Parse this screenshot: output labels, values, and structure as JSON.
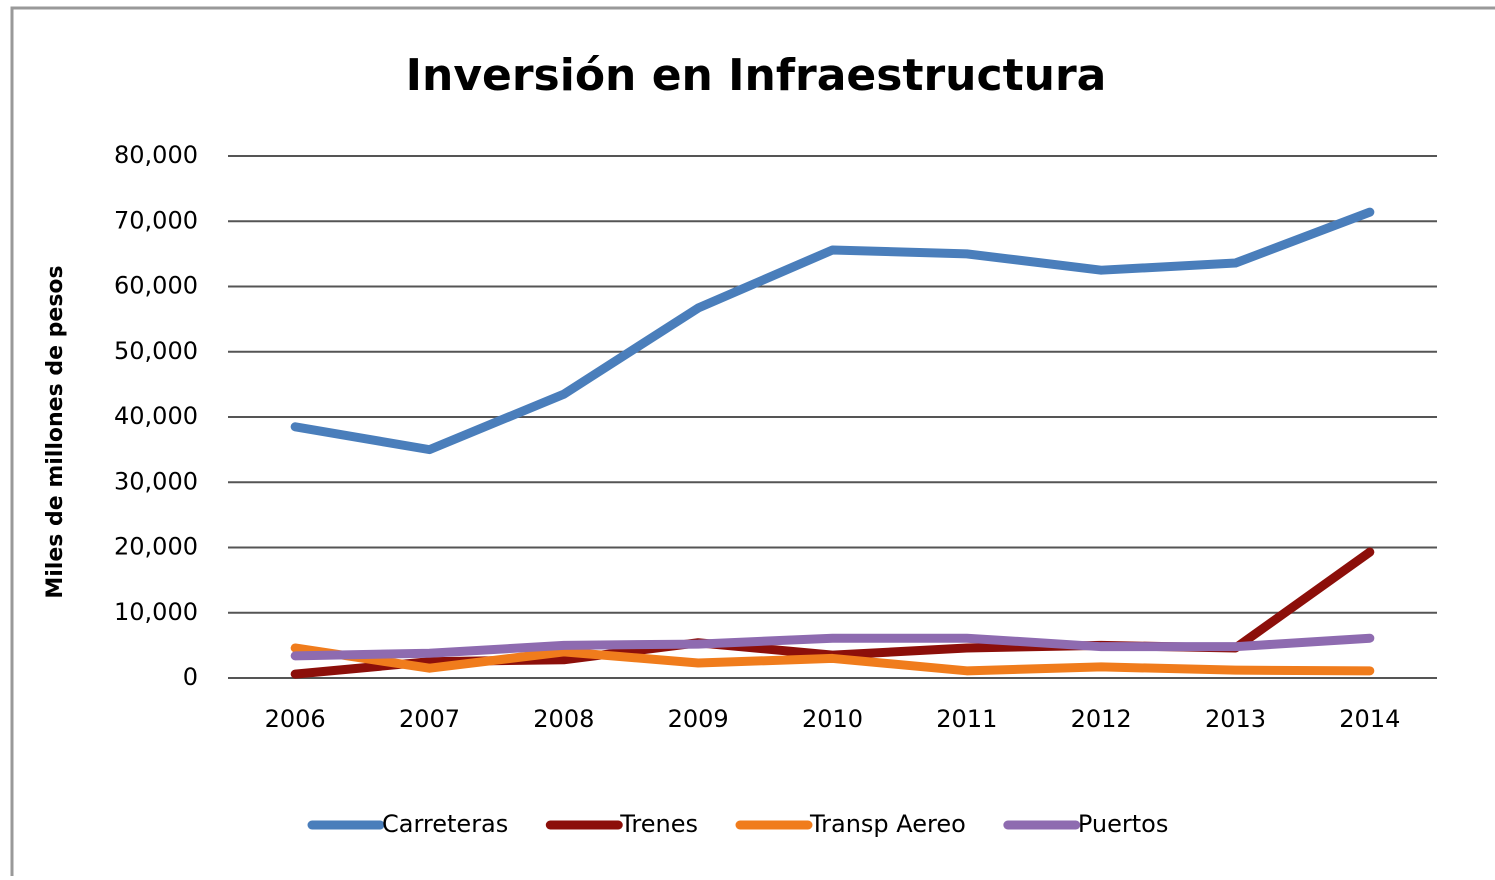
{
  "chart_data": {
    "type": "line",
    "title": "Inversión en Infraestructura",
    "y_label": "Miles de millones de pesos",
    "categories": [
      "2006",
      "2007",
      "2008",
      "2009",
      "2010",
      "2011",
      "2012",
      "2013",
      "2014"
    ],
    "series": [
      {
        "name": "Carreteras",
        "color": "#4a7ebb",
        "values": [
          38500,
          35000,
          43500,
          56700,
          65600,
          65000,
          62500,
          63600,
          71400
        ]
      },
      {
        "name": "Trenes",
        "color": "#8c0f0a",
        "values": [
          600,
          2500,
          2800,
          5400,
          3500,
          4600,
          5000,
          4600,
          19300
        ]
      },
      {
        "name": "Transp Aereo",
        "color": "#f07c1c",
        "values": [
          4600,
          1500,
          4000,
          2300,
          3000,
          1100,
          1700,
          1200,
          1100
        ]
      },
      {
        "name": "Puertos",
        "color": "#8e6bb0",
        "values": [
          3400,
          3800,
          5000,
          5200,
          6100,
          6100,
          4800,
          4800,
          6100
        ]
      }
    ],
    "ylim": [
      0,
      80000
    ],
    "yticks": [
      0,
      {
        "value": 10000,
        "label": "10,000"
      },
      {
        "value": 20000,
        "label": "20,000"
      },
      {
        "value": 30000,
        "label": "30,000"
      },
      {
        "value": 40000,
        "label": "40,000"
      },
      {
        "value": 50000,
        "label": "50,000"
      },
      {
        "value": 60000,
        "label": "60,000"
      },
      {
        "value": 70000,
        "label": "70,000"
      },
      {
        "value": 80000,
        "label": "80,000"
      }
    ],
    "grid": true,
    "legend": "bottom"
  }
}
